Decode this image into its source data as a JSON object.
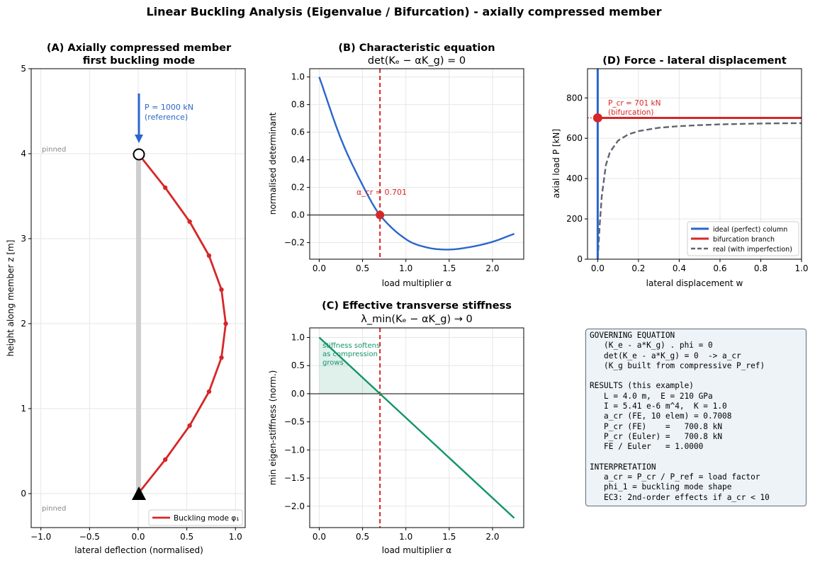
{
  "figure_title": "Linear Buckling Analysis (Eigenvalue / Bifurcation) - axially compressed member",
  "colors": {
    "red": "#d62728",
    "blue": "#2a66cc",
    "green": "#12946a",
    "gray": "#5f6670"
  },
  "panels": {
    "A": {
      "title1": "(A) Axially compressed member",
      "title2": "first buckling mode",
      "xlabel": "lateral deflection (normalised)",
      "ylabel": "height along member  z [m]",
      "xticks": [
        "−1.0",
        "−0.5",
        "0.0",
        "0.5",
        "1.0"
      ],
      "yticks": [
        "0",
        "1",
        "2",
        "3",
        "4",
        "5"
      ],
      "support_top": "pinned",
      "support_bottom": "pinned",
      "load_line1": "P = 1000 kN",
      "load_line2": "(reference)",
      "legend": "Buckling mode φ₁"
    },
    "B": {
      "title1": "(B) Characteristic equation",
      "title2": "det(Kₑ − αK_g) = 0",
      "xlabel": "load multiplier α",
      "ylabel": "normalised determinant",
      "xticks": [
        "0.0",
        "0.5",
        "1.0",
        "1.5",
        "2.0"
      ],
      "yticks": [
        "−0.2",
        "0.0",
        "0.2",
        "0.4",
        "0.6",
        "0.8",
        "1.0"
      ],
      "annotation": "α_cr = 0.701"
    },
    "C": {
      "title1": "(C) Effective transverse stiffness",
      "title2": "λ_min(Kₑ − αK_g) → 0",
      "xlabel": "load multiplier α",
      "ylabel": "min eigen-stiffness (norm.)",
      "xticks": [
        "0.0",
        "0.5",
        "1.0",
        "1.5",
        "2.0"
      ],
      "yticks": [
        "−2.0",
        "−1.5",
        "−1.0",
        "−0.5",
        "0.0",
        "0.5",
        "1.0"
      ],
      "note1": "stiffness softens",
      "note2": "as compression",
      "note3": "grows"
    },
    "D": {
      "title": "(D) Force - lateral displacement",
      "xlabel": "lateral displacement  w",
      "ylabel": "axial load  P [kN]",
      "xticks": [
        "0.0",
        "0.2",
        "0.4",
        "0.6",
        "0.8",
        "1.0"
      ],
      "yticks": [
        "0",
        "200",
        "400",
        "600",
        "800"
      ],
      "annotation1": "P_cr = 701 kN",
      "annotation2": "(bifurcation)",
      "legend": [
        "ideal (perfect) column",
        "bifurcation branch",
        "real (with imperfection)"
      ]
    }
  },
  "info_box": {
    "lines": [
      "GOVERNING EQUATION",
      "   (K_e - a*K_g) . phi = 0",
      "   det(K_e - a*K_g) = 0  -> a_cr",
      "   (K_g built from compressive P_ref)",
      "",
      "RESULTS (this example)",
      "   L = 4.0 m,  E = 210 GPa",
      "   I = 5.41 e-6 m^4,  K = 1.0",
      "   a_cr (FE, 10 elem) = 0.7008",
      "   P_cr (FE)    =   700.8 kN",
      "   P_cr (Euler) =   700.8 kN",
      "   FE / Euler   = 1.0000",
      "",
      "INTERPRETATION",
      "   a_cr = P_cr / P_ref = load factor",
      "   phi_1 = buckling mode shape",
      "   EC3: 2nd-order effects if a_cr < 10"
    ]
  },
  "chart_data": [
    {
      "panel": "A",
      "type": "line",
      "title": "(A) Axially compressed member first buckling mode",
      "xlabel": "lateral deflection (normalised)",
      "ylabel": "height along member  z [m]",
      "xlim": [
        -1.1,
        1.1
      ],
      "ylim": [
        -0.4,
        5.0
      ],
      "grid": true,
      "legend_position": "lower-right",
      "series": [
        {
          "name": "Buckling mode φ₁",
          "x": [
            0.0,
            0.278,
            0.529,
            0.728,
            0.856,
            0.9,
            0.856,
            0.728,
            0.529,
            0.278,
            0.0
          ],
          "y": [
            0.0,
            0.4,
            0.8,
            1.2,
            1.6,
            2.0,
            2.4,
            2.8,
            3.2,
            3.6,
            4.0
          ]
        }
      ],
      "member": {
        "x": 0.0,
        "z_bottom": 0.0,
        "z_top": 4.0
      },
      "load_arrow": {
        "x": 0.0,
        "z_from": 4.7,
        "z_to": 4.1,
        "P_kN": 1000
      }
    },
    {
      "panel": "B",
      "type": "line",
      "title": "(B) Characteristic equation det(Kₑ − αK_g) = 0",
      "xlabel": "load multiplier α",
      "ylabel": "normalised determinant",
      "xlim": [
        -0.11,
        2.36
      ],
      "ylim": [
        -0.32,
        1.06
      ],
      "grid": true,
      "series": [
        {
          "x": [
            0.0,
            0.25,
            0.5,
            0.701,
            1.0,
            1.25,
            1.5,
            1.75,
            2.0,
            2.25
          ],
          "y": [
            1.0,
            0.553,
            0.217,
            0.0,
            -0.175,
            -0.236,
            -0.25,
            -0.231,
            -0.194,
            -0.136
          ]
        }
      ],
      "vline": 0.701,
      "hline": 0.0,
      "marker": {
        "x": 0.701,
        "y": 0.0
      }
    },
    {
      "panel": "C",
      "type": "line",
      "title": "(C) Effective transverse stiffness λ_min(Kₑ − αK_g) → 0",
      "xlabel": "load multiplier α",
      "ylabel": "min eigen-stiffness (norm.)",
      "xlim": [
        -0.11,
        2.36
      ],
      "ylim": [
        -2.38,
        1.17
      ],
      "grid": true,
      "series": [
        {
          "x": [
            0.0,
            2.25
          ],
          "y": [
            1.0,
            -2.21
          ]
        }
      ],
      "vline": 0.701,
      "hline": 0.0,
      "shaded_until": 0.701
    },
    {
      "panel": "D",
      "type": "line",
      "title": "(D) Force - lateral displacement",
      "xlabel": "lateral displacement  w",
      "ylabel": "axial load  P [kN]",
      "xlim": [
        -0.05,
        1.0
      ],
      "ylim": [
        0,
        945
      ],
      "grid": true,
      "legend_position": "lower-right",
      "series": [
        {
          "name": "ideal (perfect) column",
          "x": [
            0.0,
            0.0
          ],
          "y": [
            0,
            945
          ]
        },
        {
          "name": "bifurcation branch",
          "x": [
            0.0,
            1.0
          ],
          "y": [
            701,
            701
          ]
        },
        {
          "name": "real (with imperfection)",
          "x": [
            0.0,
            0.01,
            0.02,
            0.04,
            0.06,
            0.1,
            0.15,
            0.2,
            0.3,
            0.4,
            0.5,
            0.6,
            0.7,
            0.8,
            0.9,
            1.0
          ],
          "y": [
            0,
            175,
            312,
            467,
            531,
            588,
            619,
            635,
            652,
            660,
            665,
            669,
            671,
            673,
            674,
            675
          ]
        }
      ],
      "marker": {
        "x": 0.0,
        "y": 701
      },
      "hline_dotted": 701
    }
  ]
}
